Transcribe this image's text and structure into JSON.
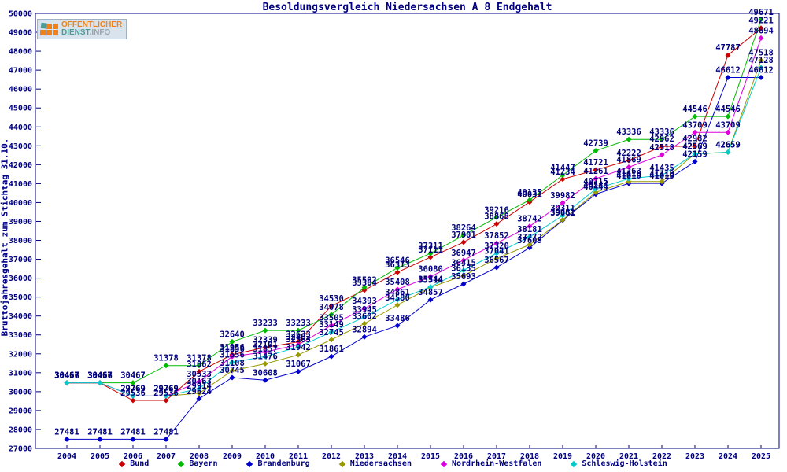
{
  "ui": {
    "title": "Besoldungsvergleich Niedersachsen A 8 Endgehalt",
    "ylabel": "Bruttojahresgehalt zum Stichtag 31.10.",
    "logo": {
      "line1": "ÖFFENTLICHER",
      "line2_teal": "DIENST",
      "line2_gray": ".INFO"
    }
  },
  "chart_data": {
    "type": "line",
    "title": "Besoldungsvergleich Niedersachsen A 8 Endgehalt",
    "ylabel": "Bruttojahresgehalt zum Stichtag 31.10.",
    "xlabel": "",
    "x": [
      2004,
      2005,
      2006,
      2007,
      2008,
      2009,
      2010,
      2011,
      2012,
      2013,
      2014,
      2015,
      2016,
      2017,
      2018,
      2019,
      2020,
      2021,
      2022,
      2023,
      2024,
      2025
    ],
    "ylim": [
      27000,
      50000
    ],
    "ytick_step": 1000,
    "grid": false,
    "legend_position": "bottom",
    "marker": "diamond",
    "point_labels": true,
    "axis_color": "#000080",
    "series": [
      {
        "name": "Bund",
        "color": "#cc0000",
        "values": [
          30456,
          30456,
          29536,
          29536,
          31062,
          31956,
          32339,
          32633,
          34530,
          35364,
          36313,
          37111,
          37901,
          38868,
          40031,
          41234,
          41721,
          42222,
          42962,
          42982,
          47787,
          49221
        ]
      },
      {
        "name": "Bayern",
        "color": "#00bb00",
        "values": [
          30467,
          30467,
          30467,
          31378,
          31378,
          32640,
          33233,
          33233,
          34078,
          35502,
          36546,
          37311,
          38264,
          39216,
          40135,
          41447,
          42739,
          43336,
          43336,
          44546,
          44546,
          49671
        ]
      },
      {
        "name": "Brandenburg",
        "color": "#0000cc",
        "values": [
          27481,
          27481,
          27481,
          27481,
          29624,
          30745,
          30608,
          31067,
          31861,
          32894,
          33486,
          34857,
          35693,
          36567,
          37609,
          39061,
          40444,
          41010,
          41010,
          42159,
          46612,
          46612
        ]
      },
      {
        "name": "Niedersachsen",
        "color": "#999900",
        "values": [
          30467,
          30467,
          29769,
          29769,
          29914,
          31108,
          31476,
          31942,
          32745,
          33602,
          34580,
          35514,
          36135,
          37041,
          37772,
          39081,
          40544,
          41110,
          41110,
          42569,
          42659,
          47518
        ]
      },
      {
        "name": "Nordrhein-Westfalen",
        "color": "#dd00dd",
        "values": [
          30467,
          30467,
          29769,
          29769,
          30533,
          31856,
          32101,
          32482,
          33505,
          34393,
          35408,
          36080,
          36947,
          37852,
          38742,
          39982,
          41261,
          41869,
          42518,
          43709,
          43709,
          48694
        ]
      },
      {
        "name": "Schleswig-Holstein",
        "color": "#00cccc",
        "values": [
          30467,
          30467,
          29769,
          29769,
          30163,
          31556,
          31857,
          32363,
          33149,
          33945,
          34861,
          35544,
          36415,
          37320,
          38181,
          39311,
          40715,
          41263,
          41435,
          42569,
          42659,
          47128
        ]
      }
    ]
  }
}
